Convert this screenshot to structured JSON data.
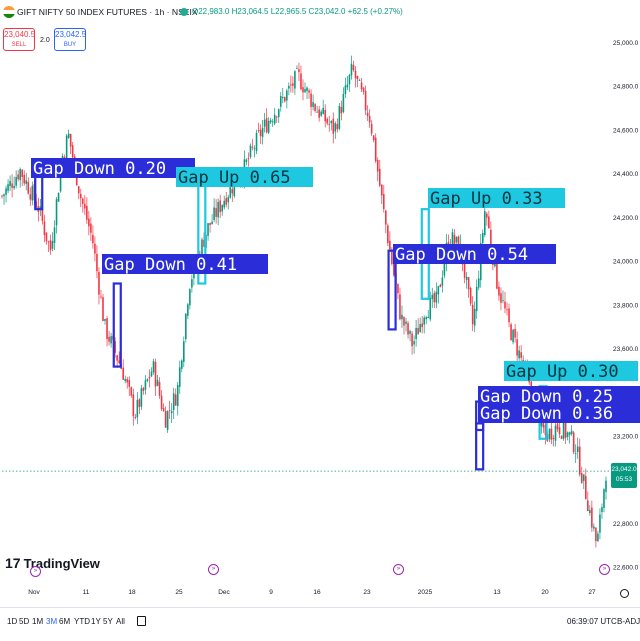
{
  "header": {
    "flag_colors": [
      "#ff9933",
      "#ffffff",
      "#138808"
    ],
    "title": "GIFT NIFTY 50 INDEX FUTURES · 1h · NSEIX",
    "ohlc": "O22,983.0 H23,064.5 L22,965.5 C23,042.0 +62.5 (+0.27%)",
    "sell_price": "23,040.5",
    "sell_label": "SELL",
    "spread": "2.0",
    "buy_price": "23,042.5",
    "buy_label": "BUY"
  },
  "chart_data": {
    "type": "candlestick",
    "y_axis_labels": [
      "25,000.0",
      "24,800.0",
      "24,600.0",
      "24,400.0",
      "24,200.0",
      "24,000.0",
      "23,800.0",
      "23,600.0",
      "23,400.0",
      "23,200.0",
      "22,800.0",
      "22,600.0"
    ],
    "y_axis_values": [
      25000,
      24800,
      24600,
      24400,
      24200,
      24000,
      23800,
      23600,
      23400,
      23200,
      22800,
      22600
    ],
    "ylim": [
      22560,
      25080
    ],
    "x_axis_labels": [
      "Nov",
      "11",
      "18",
      "25",
      "Dec",
      "9",
      "16",
      "23",
      "2025",
      "13",
      "20",
      "27"
    ],
    "current_price": "23,042.0",
    "countdown": "05:53",
    "last_price": 23042,
    "price_path": [
      [
        0,
        24300
      ],
      [
        0.03,
        24420
      ],
      [
        0.06,
        24250
      ],
      [
        0.08,
        24050
      ],
      [
        0.1,
        24480
      ],
      [
        0.11,
        24580
      ],
      [
        0.13,
        24300
      ],
      [
        0.15,
        24100
      ],
      [
        0.17,
        23700
      ],
      [
        0.2,
        23500
      ],
      [
        0.22,
        23300
      ],
      [
        0.25,
        23520
      ],
      [
        0.27,
        23280
      ],
      [
        0.29,
        23400
      ],
      [
        0.31,
        23900
      ],
      [
        0.34,
        24150
      ],
      [
        0.37,
        24300
      ],
      [
        0.4,
        24420
      ],
      [
        0.43,
        24600
      ],
      [
        0.46,
        24720
      ],
      [
        0.49,
        24850
      ],
      [
        0.52,
        24700
      ],
      [
        0.55,
        24600
      ],
      [
        0.58,
        24880
      ],
      [
        0.61,
        24650
      ],
      [
        0.63,
        24260
      ],
      [
        0.66,
        23750
      ],
      [
        0.68,
        23620
      ],
      [
        0.7,
        23780
      ],
      [
        0.72,
        23820
      ],
      [
        0.74,
        24120
      ],
      [
        0.76,
        24050
      ],
      [
        0.78,
        23700
      ],
      [
        0.8,
        24250
      ],
      [
        0.82,
        23900
      ],
      [
        0.84,
        23700
      ],
      [
        0.86,
        23550
      ],
      [
        0.88,
        23350
      ],
      [
        0.9,
        23200
      ],
      [
        0.92,
        23250
      ],
      [
        0.94,
        23200
      ],
      [
        0.95,
        23150
      ],
      [
        0.97,
        22900
      ],
      [
        0.985,
        22700
      ],
      [
        1.0,
        23042
      ]
    ],
    "annotations": [
      {
        "label": "Gap Down 0.20",
        "kind": "down",
        "p_top": 24450,
        "p_bottom": 24240,
        "t": 0.06
      },
      {
        "label": "Gap Up 0.65",
        "kind": "up",
        "p_top": 24400,
        "p_bottom": 23900,
        "t": 0.33
      },
      {
        "label": "Gap Down 0.41",
        "kind": "down",
        "p_top": 23900,
        "p_bottom": 23520,
        "t": 0.19
      },
      {
        "label": "Gap Up 0.33",
        "kind": "up",
        "p_top": 24240,
        "p_bottom": 23830,
        "t": 0.7
      },
      {
        "label": "Gap Down 0.54",
        "kind": "down",
        "p_top": 24050,
        "p_bottom": 23690,
        "t": 0.645
      },
      {
        "label": "Gap Up 0.30",
        "kind": "up",
        "p_top": 23430,
        "p_bottom": 23190,
        "t": 0.895
      },
      {
        "label": "Gap Down 0.25",
        "kind": "down",
        "p_top": 23360,
        "p_bottom": 23230,
        "t": 0.79
      },
      {
        "label": "Gap Down 0.36",
        "kind": "down",
        "p_top": 23260,
        "p_bottom": 23050,
        "t": 0.79
      }
    ],
    "colors": {
      "up": "#089981",
      "down": "#f23645",
      "gap_up": "#1ec8e0",
      "gap_down": "#2b2dd8"
    }
  },
  "brand": {
    "logo_text": "TradingView"
  },
  "toolbar": {
    "ranges": [
      "1D",
      "5D",
      "1M",
      "3M",
      "6M",
      "YTD",
      "1Y",
      "5Y",
      "All"
    ],
    "active_range": "3M",
    "time": "06:39:07 UTC",
    "adj": "B-ADJ"
  }
}
